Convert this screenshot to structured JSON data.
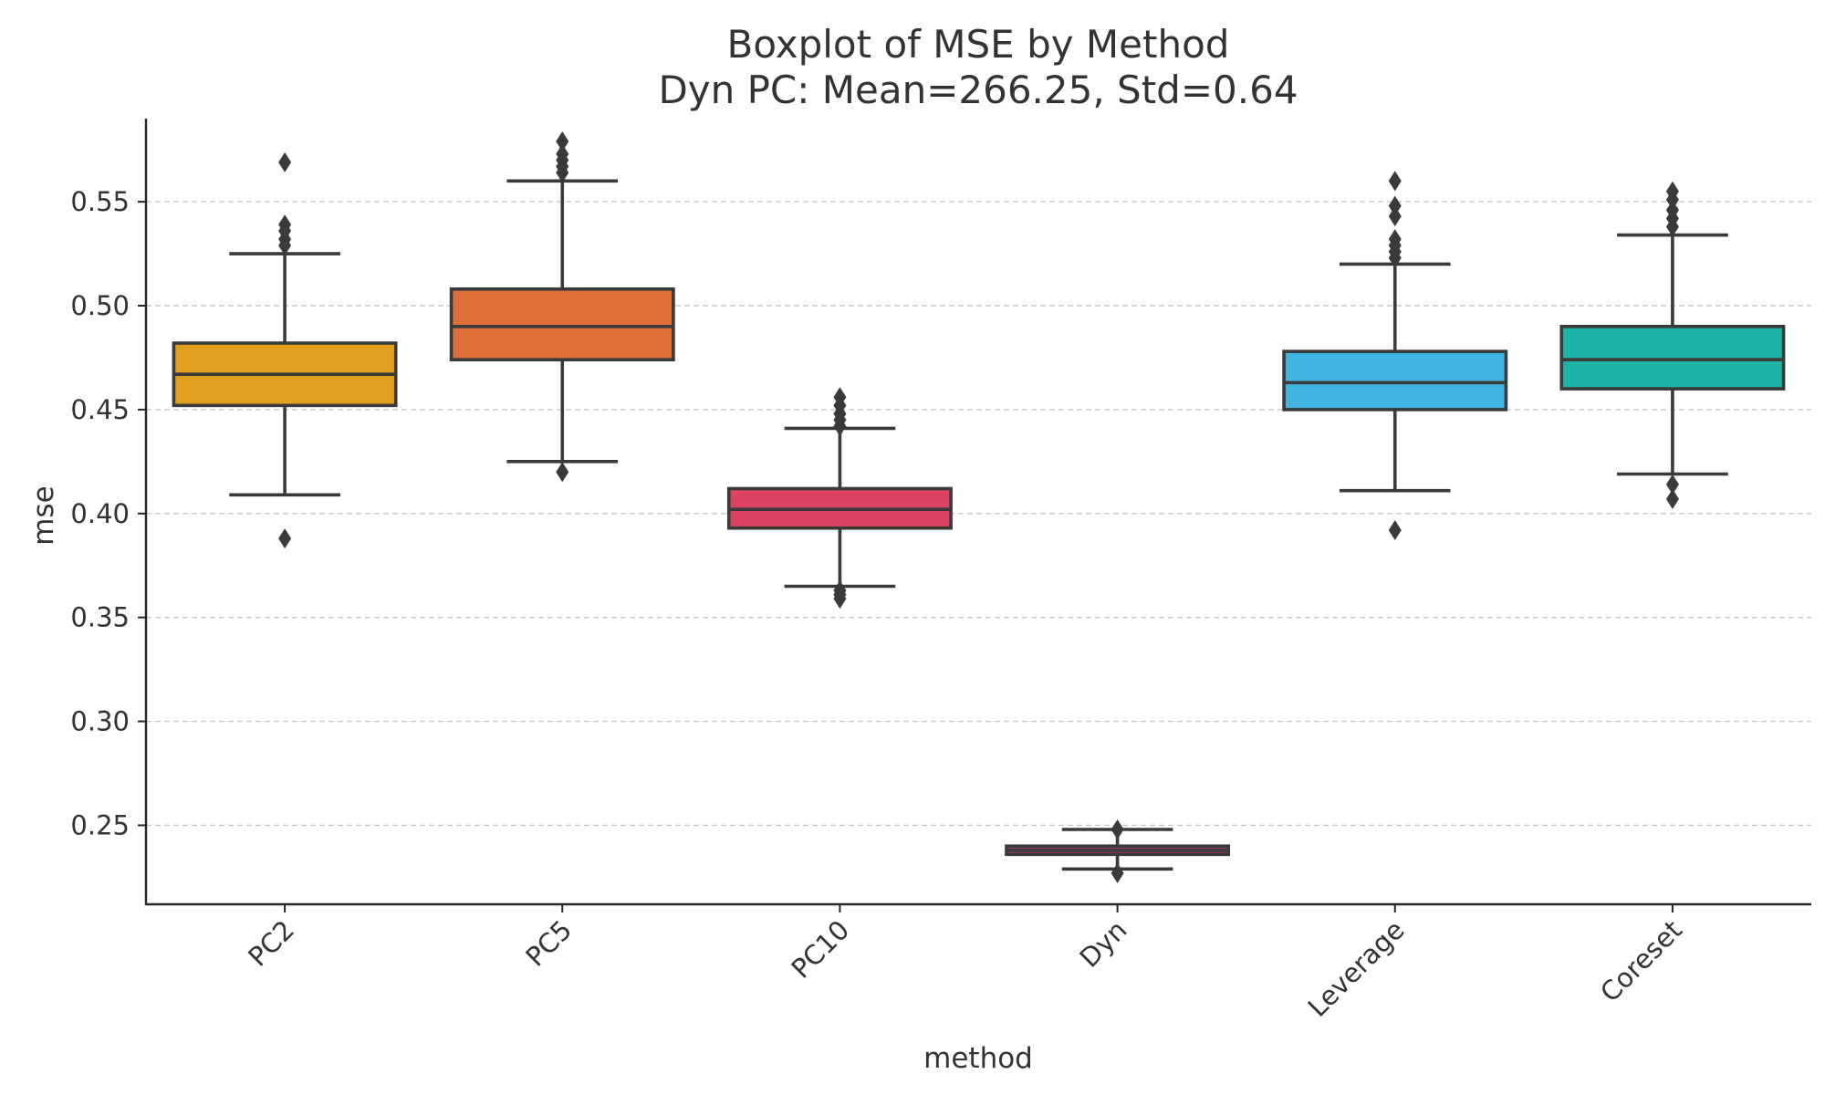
{
  "chart_data": {
    "type": "boxplot",
    "title": "Boxplot of MSE by Method",
    "subtitle": "Dyn PC: Mean=266.25, Std=0.64",
    "xlabel": "method",
    "ylabel": "mse",
    "ylim": [
      0.212,
      0.59
    ],
    "yticks": [
      0.25,
      0.3,
      0.35,
      0.4,
      0.45,
      0.5,
      0.55
    ],
    "ytick_labels": [
      "0.25",
      "0.30",
      "0.35",
      "0.40",
      "0.45",
      "0.50",
      "0.55"
    ],
    "grid": "horizontal dashed",
    "categories": [
      "PC2",
      "PC5",
      "PC10",
      "Dyn",
      "Leverage",
      "Coreset"
    ],
    "series": [
      {
        "name": "PC2",
        "color": "#e1a11f",
        "whisker_low": 0.409,
        "q1": 0.452,
        "median": 0.467,
        "q3": 0.482,
        "whisker_high": 0.525,
        "outliers": [
          0.388,
          0.529,
          0.532,
          0.536,
          0.539,
          0.569
        ]
      },
      {
        "name": "PC5",
        "color": "#dd6f37",
        "whisker_low": 0.425,
        "q1": 0.474,
        "median": 0.49,
        "q3": 0.508,
        "whisker_high": 0.56,
        "outliers": [
          0.42,
          0.564,
          0.567,
          0.57,
          0.573,
          0.579
        ]
      },
      {
        "name": "PC10",
        "color": "#dc4360",
        "whisker_low": 0.365,
        "q1": 0.393,
        "median": 0.402,
        "q3": 0.412,
        "whisker_high": 0.441,
        "outliers": [
          0.359,
          0.361,
          0.363,
          0.442,
          0.445,
          0.448,
          0.452,
          0.456
        ]
      },
      {
        "name": "Dyn",
        "color": "#9c3f6e",
        "whisker_low": 0.229,
        "q1": 0.236,
        "median": 0.238,
        "q3": 0.24,
        "whisker_high": 0.248,
        "outliers": [
          0.227,
          0.248
        ]
      },
      {
        "name": "Leverage",
        "color": "#42b4e1",
        "whisker_low": 0.411,
        "q1": 0.45,
        "median": 0.463,
        "q3": 0.478,
        "whisker_high": 0.52,
        "outliers": [
          0.392,
          0.523,
          0.526,
          0.529,
          0.532,
          0.543,
          0.548,
          0.56
        ]
      },
      {
        "name": "Coreset",
        "color": "#1bb3a6",
        "whisker_low": 0.419,
        "q1": 0.46,
        "median": 0.474,
        "q3": 0.49,
        "whisker_high": 0.534,
        "outliers": [
          0.407,
          0.414,
          0.538,
          0.542,
          0.546,
          0.551,
          0.555
        ]
      }
    ]
  }
}
